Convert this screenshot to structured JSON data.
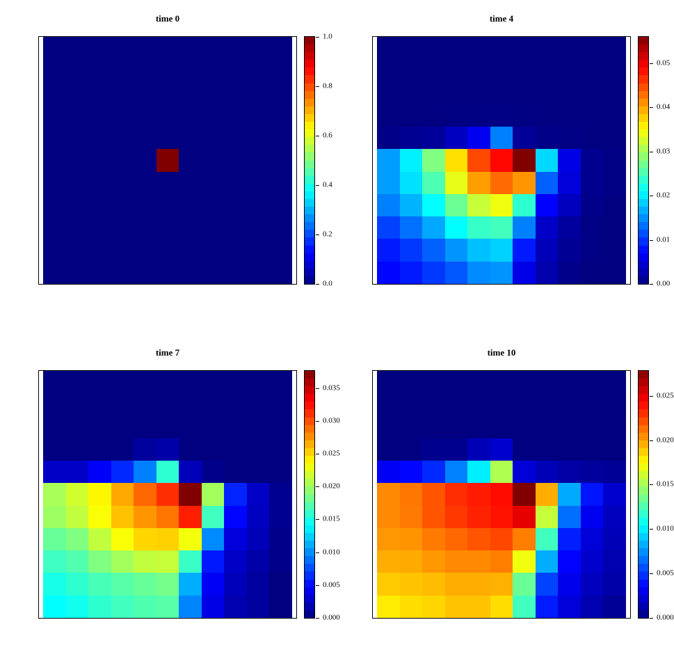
{
  "figure": {
    "background": "#ffffff",
    "frame_color": "#000000",
    "colormap_name": "jet",
    "colormap_min_color": "#000080",
    "colormap_max_color": "#800000",
    "colorbar_levels": 32
  },
  "chart_data": [
    {
      "type": "heatmap",
      "title": "time 0",
      "grid_size": [
        11,
        11
      ],
      "colormap": "jet",
      "colorbar_position": "right",
      "value_range": [
        0,
        1.0
      ],
      "colorbar_ticks": [
        {
          "value": 1.0,
          "label": "1.0"
        },
        {
          "value": 0.8,
          "label": "0.8"
        },
        {
          "value": 0.6,
          "label": "0.6"
        },
        {
          "value": 0.4,
          "label": "0.4"
        },
        {
          "value": 0.2,
          "label": "0.2"
        },
        {
          "value": 0.0,
          "label": "0.0"
        }
      ],
      "values": [
        [
          0,
          0,
          0,
          0,
          0,
          0,
          0,
          0,
          0,
          0,
          0
        ],
        [
          0,
          0,
          0,
          0,
          0,
          0,
          0,
          0,
          0,
          0,
          0
        ],
        [
          0,
          0,
          0,
          0,
          0,
          0,
          0,
          0,
          0,
          0,
          0
        ],
        [
          0,
          0,
          0,
          0,
          0,
          0,
          0,
          0,
          0,
          0,
          0
        ],
        [
          0,
          0,
          0,
          0,
          0,
          0,
          0,
          0,
          0,
          0,
          0
        ],
        [
          0,
          0,
          0,
          0,
          0,
          1.0,
          0,
          0,
          0,
          0,
          0
        ],
        [
          0,
          0,
          0,
          0,
          0,
          0,
          0,
          0,
          0,
          0,
          0
        ],
        [
          0,
          0,
          0,
          0,
          0,
          0,
          0,
          0,
          0,
          0,
          0
        ],
        [
          0,
          0,
          0,
          0,
          0,
          0,
          0,
          0,
          0,
          0,
          0
        ],
        [
          0,
          0,
          0,
          0,
          0,
          0,
          0,
          0,
          0,
          0,
          0
        ],
        [
          0,
          0,
          0,
          0,
          0,
          0,
          0,
          0,
          0,
          0,
          0
        ]
      ]
    },
    {
      "type": "heatmap",
      "title": "time 4",
      "grid_size": [
        11,
        11
      ],
      "colormap": "jet",
      "colorbar_position": "right",
      "value_range": [
        0,
        0.056
      ],
      "colorbar_ticks": [
        {
          "value": 0.05,
          "label": "0.05"
        },
        {
          "value": 0.04,
          "label": "0.04"
        },
        {
          "value": 0.03,
          "label": "0.03"
        },
        {
          "value": 0.02,
          "label": "0.02"
        },
        {
          "value": 0.01,
          "label": "0.01"
        },
        {
          "value": 0.0,
          "label": "0.00"
        }
      ],
      "values": [
        [
          0,
          0,
          0,
          0,
          0,
          0,
          0,
          0,
          0,
          0,
          0
        ],
        [
          0,
          0,
          0,
          0,
          0,
          0,
          0,
          0,
          0,
          0,
          0
        ],
        [
          0,
          0,
          0,
          0,
          0,
          0,
          0,
          0,
          0,
          0,
          0
        ],
        [
          0,
          0,
          0,
          0.0001,
          0.0002,
          0.0003,
          0.0001,
          0,
          0,
          0,
          0
        ],
        [
          0.0004,
          0.0009,
          0.0013,
          0.0035,
          0.0062,
          0.014,
          0.0013,
          0.0004,
          0.0002,
          0,
          0
        ],
        [
          0.0157,
          0.0202,
          0.028,
          0.0367,
          0.045,
          0.0486,
          0.056,
          0.0189,
          0.0056,
          0.0008,
          0.0002
        ],
        [
          0.0157,
          0.0193,
          0.0252,
          0.0337,
          0.0403,
          0.0431,
          0.0408,
          0.0123,
          0.005,
          0.0008,
          0.0002
        ],
        [
          0.014,
          0.0168,
          0.021,
          0.0269,
          0.0319,
          0.0342,
          0.0235,
          0.007,
          0.0034,
          0.0006,
          0
        ],
        [
          0.0106,
          0.0132,
          0.0162,
          0.021,
          0.024,
          0.0246,
          0.014,
          0.0039,
          0.0017,
          0.0003,
          0
        ],
        [
          0.0084,
          0.0101,
          0.0123,
          0.0151,
          0.0176,
          0.0185,
          0.0084,
          0.0031,
          0.0011,
          0.0002,
          0
        ],
        [
          0.0073,
          0.0084,
          0.0101,
          0.0118,
          0.0146,
          0.0151,
          0.0056,
          0.0025,
          0.0006,
          0,
          0
        ]
      ]
    },
    {
      "type": "heatmap",
      "title": "time 7",
      "grid_size": [
        11,
        11
      ],
      "colormap": "jet",
      "colorbar_position": "right",
      "value_range": [
        0,
        0.0376
      ],
      "colorbar_ticks": [
        {
          "value": 0.035,
          "label": "0.035"
        },
        {
          "value": 0.03,
          "label": "0.030"
        },
        {
          "value": 0.025,
          "label": "0.025"
        },
        {
          "value": 0.02,
          "label": "0.020"
        },
        {
          "value": 0.015,
          "label": "0.015"
        },
        {
          "value": 0.01,
          "label": "0.010"
        },
        {
          "value": 0.005,
          "label": "0.005"
        },
        {
          "value": 0.0,
          "label": "0.000"
        }
      ],
      "values": [
        [
          0,
          0,
          0,
          0,
          0,
          0,
          0,
          0,
          0,
          0,
          0
        ],
        [
          0,
          0,
          0,
          0,
          0,
          0,
          0,
          0,
          0,
          0,
          0
        ],
        [
          0,
          0,
          0,
          0,
          0,
          0,
          0,
          0,
          0,
          0,
          0
        ],
        [
          0,
          0,
          0,
          0,
          0.0011,
          0.0015,
          0,
          0,
          0,
          0,
          0
        ],
        [
          0.0026,
          0.0026,
          0.0045,
          0.0062,
          0.0094,
          0.0158,
          0.0021,
          0.0004,
          0,
          0,
          0
        ],
        [
          0.0203,
          0.0218,
          0.0238,
          0.0267,
          0.0291,
          0.0312,
          0.0376,
          0.0201,
          0.006,
          0.0026,
          0.0006
        ],
        [
          0.0199,
          0.0212,
          0.0233,
          0.0258,
          0.0274,
          0.0286,
          0.0318,
          0.0165,
          0.0049,
          0.0024,
          0.0006
        ],
        [
          0.0179,
          0.0188,
          0.0212,
          0.0233,
          0.025,
          0.0252,
          0.0231,
          0.0098,
          0.0034,
          0.0021,
          0.0004
        ],
        [
          0.0164,
          0.0171,
          0.0188,
          0.0201,
          0.0212,
          0.0214,
          0.0162,
          0.0056,
          0.0026,
          0.0015,
          0.0004
        ],
        [
          0.015,
          0.0158,
          0.0167,
          0.0173,
          0.0179,
          0.0184,
          0.0111,
          0.0043,
          0.0021,
          0.0011,
          0
        ],
        [
          0.0141,
          0.0147,
          0.0158,
          0.0165,
          0.017,
          0.0173,
          0.0096,
          0.0038,
          0.0017,
          0.0011,
          0
        ]
      ]
    },
    {
      "type": "heatmap",
      "title": "time 10",
      "grid_size": [
        11,
        11
      ],
      "colormap": "jet",
      "colorbar_position": "right",
      "value_range": [
        0,
        0.0278
      ],
      "colorbar_ticks": [
        {
          "value": 0.025,
          "label": "0.025"
        },
        {
          "value": 0.02,
          "label": "0.020"
        },
        {
          "value": 0.015,
          "label": "0.015"
        },
        {
          "value": 0.01,
          "label": "0.010"
        },
        {
          "value": 0.005,
          "label": "0.005"
        },
        {
          "value": 0.0,
          "label": "0.000"
        }
      ],
      "values": [
        [
          0,
          0,
          0,
          0,
          0,
          0,
          0,
          0,
          0,
          0,
          0
        ],
        [
          0,
          0,
          0,
          0,
          0,
          0,
          0,
          0,
          0,
          0,
          0
        ],
        [
          0,
          0,
          0,
          0,
          0,
          0,
          0,
          0,
          0,
          0,
          0
        ],
        [
          0,
          0,
          0.0004,
          0.0004,
          0.0015,
          0.0021,
          0,
          0,
          0,
          0,
          0
        ],
        [
          0.0032,
          0.0036,
          0.0046,
          0.007,
          0.01,
          0.0152,
          0.0024,
          0.0015,
          0.001,
          0.0008,
          0.0006
        ],
        [
          0.0206,
          0.0211,
          0.022,
          0.0231,
          0.0236,
          0.024,
          0.0278,
          0.0196,
          0.0081,
          0.004,
          0.0021
        ],
        [
          0.0206,
          0.021,
          0.022,
          0.0228,
          0.0234,
          0.0238,
          0.025,
          0.0158,
          0.0065,
          0.0031,
          0.0017
        ],
        [
          0.0202,
          0.0203,
          0.021,
          0.0215,
          0.022,
          0.0224,
          0.0209,
          0.0122,
          0.0043,
          0.0024,
          0.0015
        ],
        [
          0.0196,
          0.0197,
          0.0202,
          0.0206,
          0.0206,
          0.0209,
          0.017,
          0.0082,
          0.0035,
          0.0021,
          0.0013
        ],
        [
          0.0188,
          0.019,
          0.0192,
          0.0196,
          0.0196,
          0.0195,
          0.0133,
          0.0053,
          0.0029,
          0.0017,
          0.0011
        ],
        [
          0.0179,
          0.0183,
          0.0185,
          0.019,
          0.019,
          0.0183,
          0.0122,
          0.0042,
          0.0025,
          0.0013,
          0.0006
        ]
      ]
    }
  ]
}
